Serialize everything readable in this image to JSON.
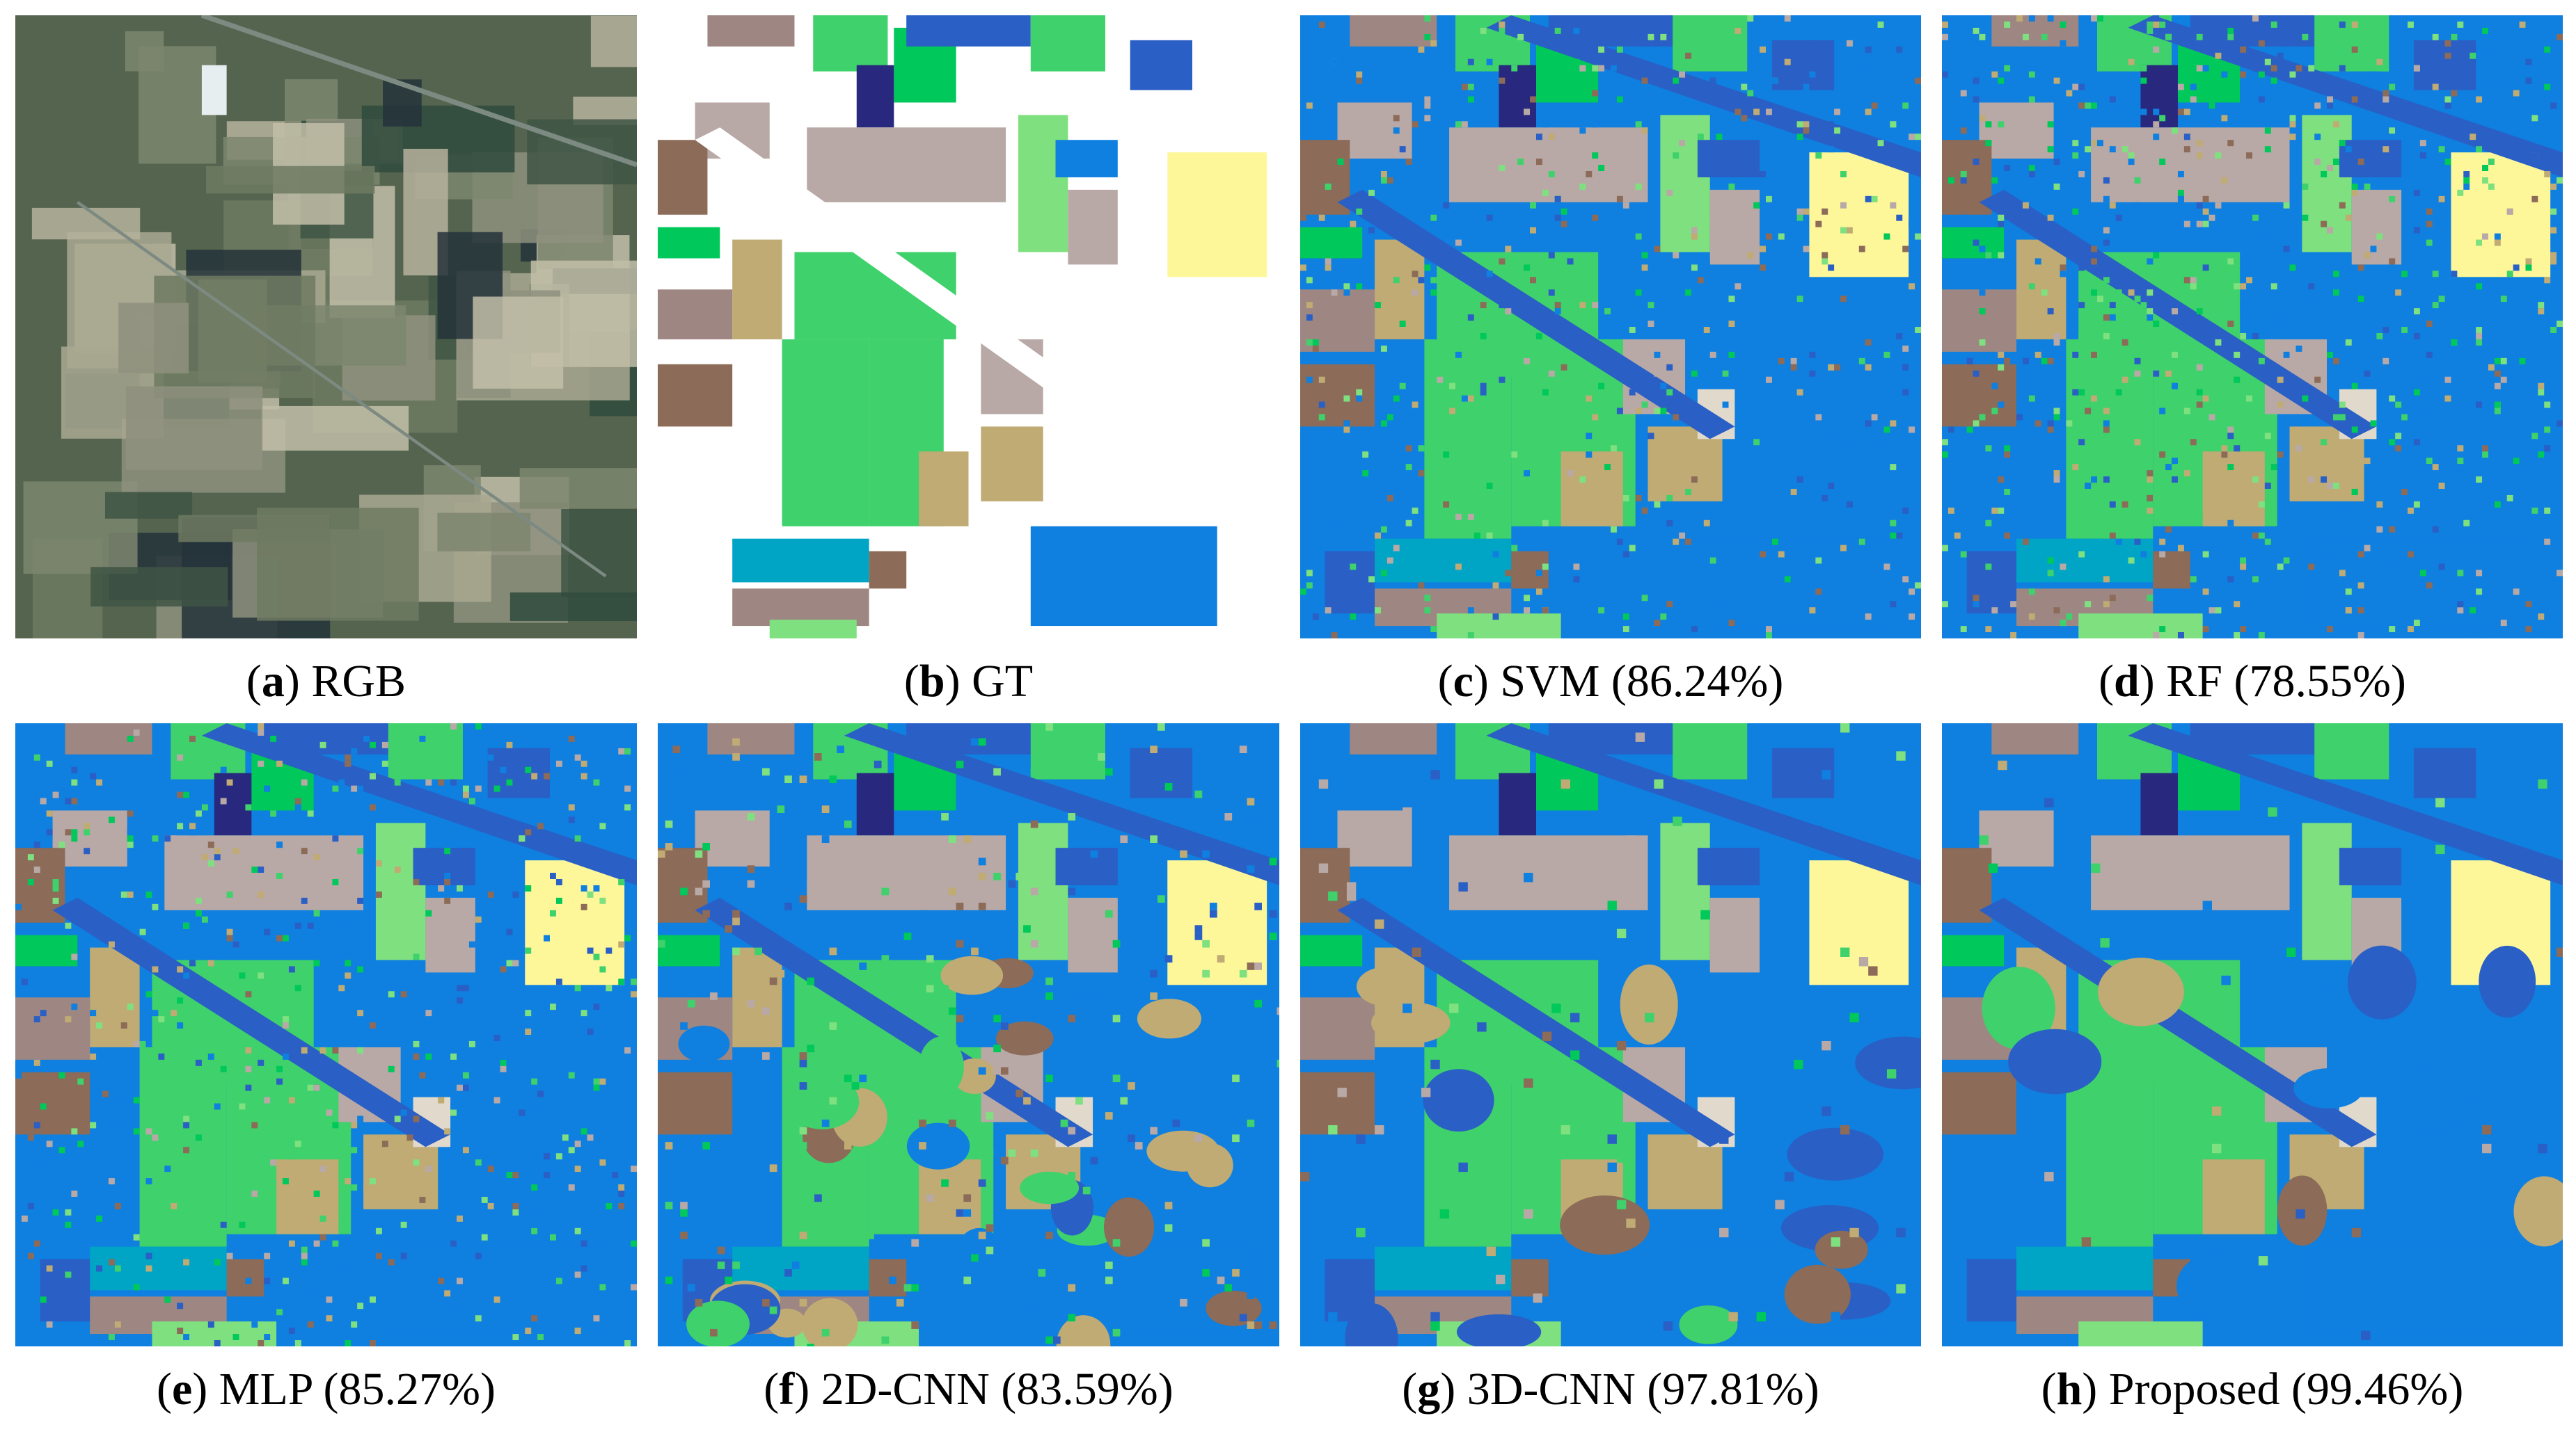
{
  "panels": [
    {
      "id": "a",
      "letter": "a",
      "text": "RGB",
      "kind": "rgb"
    },
    {
      "id": "b",
      "letter": "b",
      "text": "GT",
      "kind": "gt"
    },
    {
      "id": "c",
      "letter": "c",
      "text": "SVM (86.24%)",
      "kind": "noisy",
      "noise": 0.18
    },
    {
      "id": "d",
      "letter": "d",
      "text": "RF (78.55%)",
      "kind": "noisy",
      "noise": 0.26
    },
    {
      "id": "e",
      "letter": "e",
      "text": "MLP (85.27%)",
      "kind": "noisy",
      "noise": 0.2
    },
    {
      "id": "f",
      "letter": "f",
      "text": "2D-CNN (83.59%)",
      "kind": "blobby",
      "noise": 0.1
    },
    {
      "id": "g",
      "letter": "g",
      "text": "3D-CNN (97.81%)",
      "kind": "smooth",
      "noise": 0.03
    },
    {
      "id": "h",
      "letter": "h",
      "text": "Proposed (99.46%)",
      "kind": "smooth",
      "noise": 0.01
    }
  ],
  "palette": {
    "background_blue": "#0f7fe0",
    "light_green": "#3fd16b",
    "pale_green": "#7fe07f",
    "green": "#00c85a",
    "taupe": "#b8a9a6",
    "brown": "#8c6b58",
    "tan": "#bfab73",
    "mauve": "#9e8782",
    "dark_blue": "#2a5fc5",
    "navy": "#28287f",
    "yellow": "#fdf79a",
    "teal": "#00a5c5",
    "cream": "#e0d9cc",
    "gt_white": "#ffffff"
  }
}
